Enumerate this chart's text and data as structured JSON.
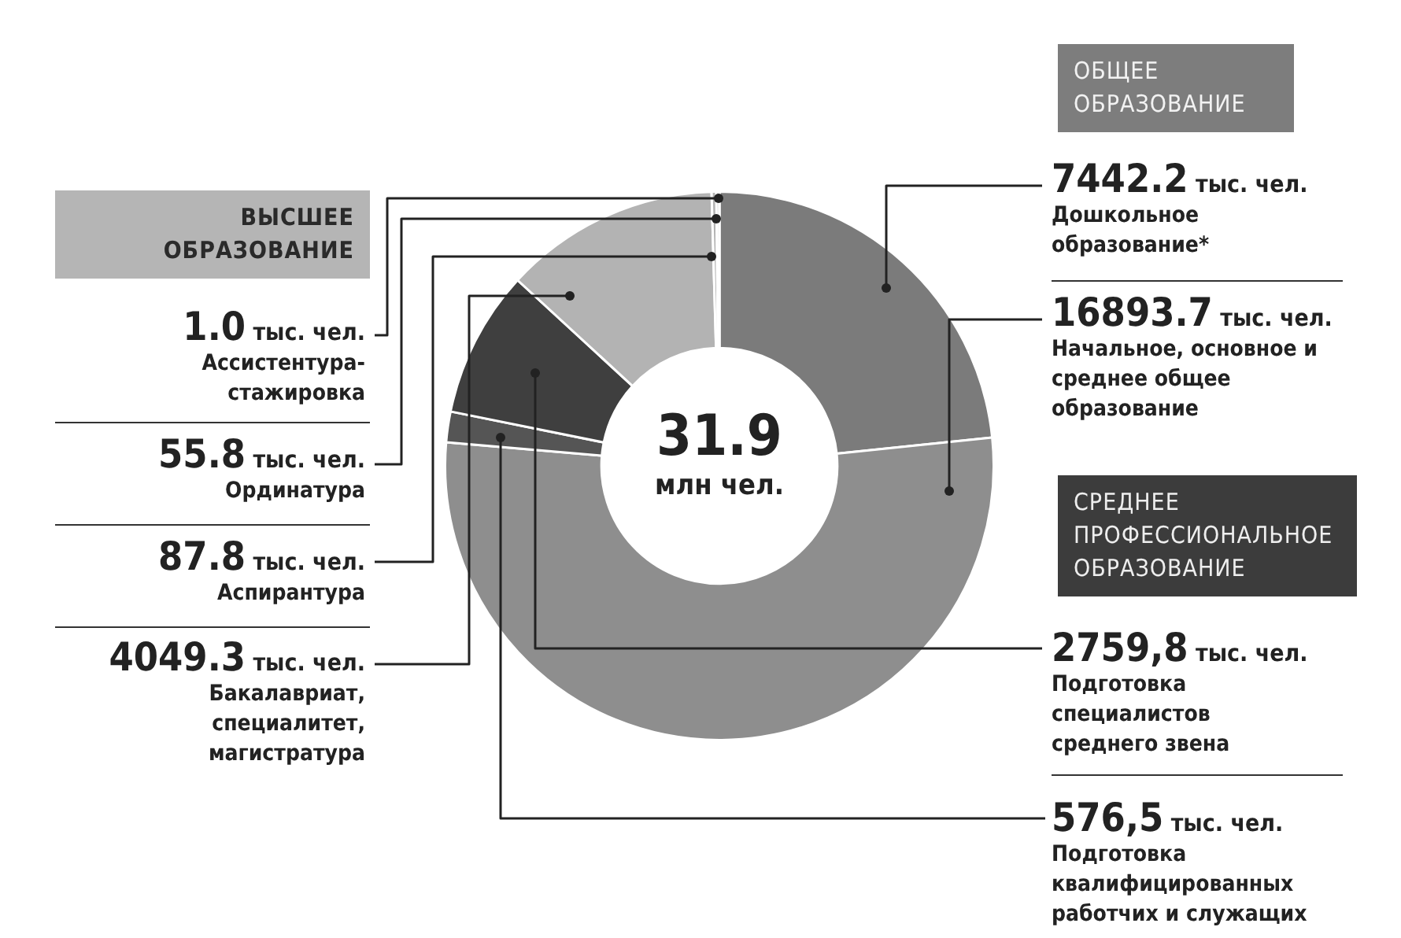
{
  "chart_data": {
    "type": "donut",
    "categories": [
      "Дошкольное образование*",
      "Начальное, основное и среднее общее образование",
      "Подготовка квалифицированных работчих и служащих",
      "Подготовка специалистов среднего звена",
      "Бакалавриат, специалитет, магистратура",
      "Аспирантура",
      "Ординатура",
      "Ассистентура-стажировка"
    ],
    "values": [
      7442.2,
      16893.7,
      576.5,
      2759.8,
      4049.3,
      87.8,
      55.8,
      1.0
    ],
    "colors": [
      "#7b7b7b",
      "#8e8e8e",
      "#555555",
      "#3f3f3f",
      "#b3b3b3",
      "#b3b3b3",
      "#b3b3b3",
      "#b3b3b3"
    ],
    "value_labels": [
      "7442.2 тыс. чел.",
      "16893.7 тыс. чел.",
      "576,5 тыс. чел.",
      "2759,8 тыс. чел.",
      "4049.3 тыс. чел.",
      "87.8 тыс. чел.",
      "55.8 тыс. чел.",
      "1.0 тыс. чел."
    ],
    "annotations": [
      "31.9 млн чел.",
      "ОБЩЕЕ ОБРАЗОВАНИЕ",
      "ВЫСШЕЕ ОБРАЗОВАНИЕ",
      "СРЕДНЕЕ ПРОФЕССИОНАЛЬНОЕ ОБРАЗОВАНИЕ"
    ]
  }
}
